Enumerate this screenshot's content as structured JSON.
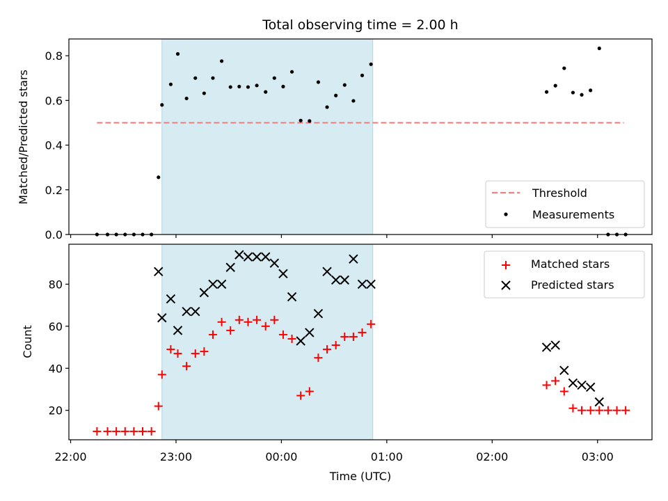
{
  "chart_data": [
    {
      "type": "scatter",
      "title": "Total observing time = 2.00 h",
      "ylabel": "Matched/Predicted stars",
      "xlabel": "",
      "ylim": [
        0,
        0.875
      ],
      "yticks": [
        0.0,
        0.2,
        0.4,
        0.6,
        0.8
      ],
      "ytick_labels": [
        "0.0",
        "0.2",
        "0.4",
        "0.6",
        "0.8"
      ],
      "xlim": [
        "21:59",
        "03:31"
      ],
      "highlight_span": [
        "22:52",
        "00:52"
      ],
      "threshold": {
        "value": 0.5,
        "x_start": "22:15",
        "x_end": "03:15",
        "color": "#f08080"
      },
      "legend": {
        "position": "lower right",
        "entries": [
          "Threshold",
          "Measurements"
        ]
      },
      "series": [
        {
          "name": "Measurements",
          "color": "#000000",
          "marker": "dot",
          "points": [
            [
              "22:15",
              0.0
            ],
            [
              "22:21",
              0.0
            ],
            [
              "22:26",
              0.0
            ],
            [
              "22:31",
              0.0
            ],
            [
              "22:36",
              0.0
            ],
            [
              "22:41",
              0.0
            ],
            [
              "22:46",
              0.0
            ],
            [
              "22:50",
              0.256
            ],
            [
              "22:52",
              0.58
            ],
            [
              "22:57",
              0.672
            ],
            [
              "23:01",
              0.808
            ],
            [
              "23:06",
              0.609
            ],
            [
              "23:11",
              0.7
            ],
            [
              "23:16",
              0.632
            ],
            [
              "23:21",
              0.7
            ],
            [
              "23:26",
              0.776
            ],
            [
              "23:31",
              0.66
            ],
            [
              "23:36",
              0.662
            ],
            [
              "23:41",
              0.66
            ],
            [
              "23:46",
              0.667
            ],
            [
              "23:51",
              0.638
            ],
            [
              "23:56",
              0.7
            ],
            [
              "00:01",
              0.662
            ],
            [
              "00:06",
              0.728
            ],
            [
              "00:11",
              0.51
            ],
            [
              "00:16",
              0.508
            ],
            [
              "00:21",
              0.682
            ],
            [
              "00:26",
              0.57
            ],
            [
              "00:31",
              0.622
            ],
            [
              "00:36",
              0.669
            ],
            [
              "00:41",
              0.598
            ],
            [
              "00:46",
              0.712
            ],
            [
              "00:51",
              0.762
            ],
            [
              "02:31",
              0.638
            ],
            [
              "02:36",
              0.666
            ],
            [
              "02:41",
              0.744
            ],
            [
              "02:46",
              0.635
            ],
            [
              "02:51",
              0.625
            ],
            [
              "02:56",
              0.645
            ],
            [
              "03:01",
              0.833
            ],
            [
              "03:06",
              0.0
            ],
            [
              "03:11",
              0.0
            ],
            [
              "03:16",
              0.0
            ]
          ]
        }
      ]
    },
    {
      "type": "scatter",
      "title": "",
      "ylabel": "Count",
      "xlabel": "Time (UTC)",
      "ylim": [
        6,
        99
      ],
      "yticks": [
        20,
        40,
        60,
        80
      ],
      "ytick_labels": [
        "20",
        "40",
        "60",
        "80"
      ],
      "xlim": [
        "21:59",
        "03:31"
      ],
      "xticks": [
        "22:00",
        "23:00",
        "00:00",
        "01:00",
        "02:00",
        "03:00"
      ],
      "xtick_labels": [
        "22:00",
        "23:00",
        "00:00",
        "01:00",
        "02:00",
        "03:00"
      ],
      "highlight_span": [
        "22:52",
        "00:52"
      ],
      "legend": {
        "position": "upper right",
        "entries": [
          "Matched stars",
          "Predicted stars"
        ]
      },
      "series": [
        {
          "name": "Matched stars",
          "color": "#ff0000",
          "marker": "plus",
          "points": [
            [
              "22:15",
              10
            ],
            [
              "22:21",
              10
            ],
            [
              "22:26",
              10
            ],
            [
              "22:31",
              10
            ],
            [
              "22:36",
              10
            ],
            [
              "22:41",
              10
            ],
            [
              "22:46",
              10
            ],
            [
              "22:50",
              22
            ],
            [
              "22:52",
              37
            ],
            [
              "22:57",
              49
            ],
            [
              "23:01",
              47
            ],
            [
              "23:06",
              41
            ],
            [
              "23:11",
              47
            ],
            [
              "23:16",
              48
            ],
            [
              "23:21",
              56
            ],
            [
              "23:26",
              62
            ],
            [
              "23:31",
              58
            ],
            [
              "23:36",
              63
            ],
            [
              "23:41",
              62
            ],
            [
              "23:46",
              63
            ],
            [
              "23:51",
              60
            ],
            [
              "23:56",
              63
            ],
            [
              "00:01",
              56
            ],
            [
              "00:06",
              54
            ],
            [
              "00:11",
              27
            ],
            [
              "00:16",
              29
            ],
            [
              "00:21",
              45
            ],
            [
              "00:26",
              49
            ],
            [
              "00:31",
              51
            ],
            [
              "00:36",
              55
            ],
            [
              "00:41",
              55
            ],
            [
              "00:46",
              57
            ],
            [
              "00:51",
              61
            ],
            [
              "02:31",
              32
            ],
            [
              "02:36",
              34
            ],
            [
              "02:41",
              29
            ],
            [
              "02:46",
              21
            ],
            [
              "02:51",
              20
            ],
            [
              "02:56",
              20
            ],
            [
              "03:01",
              20
            ],
            [
              "03:06",
              20
            ],
            [
              "03:11",
              20
            ],
            [
              "03:16",
              20
            ]
          ]
        },
        {
          "name": "Predicted stars",
          "color": "#000000",
          "marker": "x",
          "points": [
            [
              "22:50",
              86
            ],
            [
              "22:52",
              64
            ],
            [
              "22:57",
              73
            ],
            [
              "23:01",
              58
            ],
            [
              "23:06",
              67
            ],
            [
              "23:11",
              67
            ],
            [
              "23:16",
              76
            ],
            [
              "23:21",
              80
            ],
            [
              "23:26",
              80
            ],
            [
              "23:31",
              88
            ],
            [
              "23:36",
              94
            ],
            [
              "23:41",
              93
            ],
            [
              "23:46",
              93
            ],
            [
              "23:51",
              93
            ],
            [
              "23:56",
              90
            ],
            [
              "00:01",
              85
            ],
            [
              "00:06",
              74
            ],
            [
              "00:11",
              53
            ],
            [
              "00:16",
              57
            ],
            [
              "00:21",
              66
            ],
            [
              "00:26",
              86
            ],
            [
              "00:31",
              82
            ],
            [
              "00:36",
              82
            ],
            [
              "00:41",
              92
            ],
            [
              "00:46",
              80
            ],
            [
              "00:51",
              80
            ],
            [
              "02:31",
              50
            ],
            [
              "02:36",
              51
            ],
            [
              "02:41",
              39
            ],
            [
              "02:46",
              33
            ],
            [
              "02:51",
              32
            ],
            [
              "02:56",
              31
            ],
            [
              "03:01",
              24
            ]
          ]
        }
      ]
    }
  ]
}
